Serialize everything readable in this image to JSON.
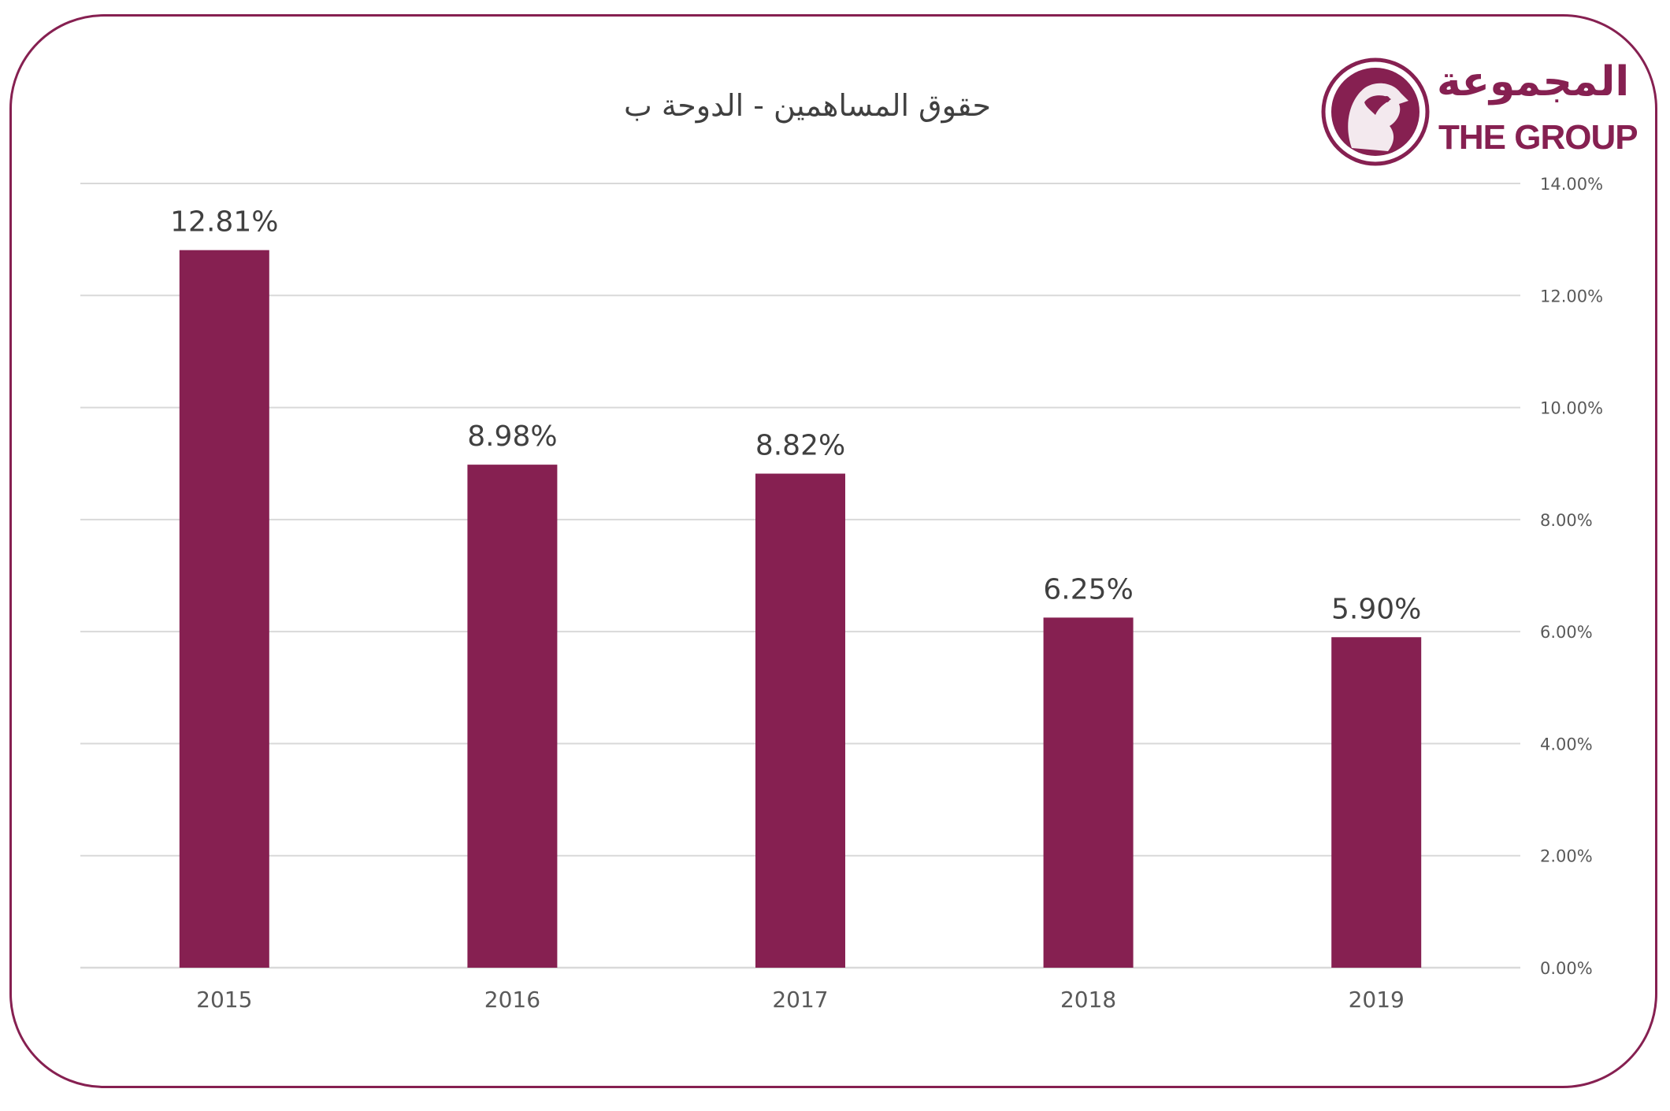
{
  "logo": {
    "text_ar": "المجموعة",
    "text_en": "THE GROUP",
    "icon": "falcon-emblem-icon"
  },
  "chart_data": {
    "type": "bar",
    "title": "حقوق المساهمين - الدوحة ب",
    "categories": [
      "2015",
      "2016",
      "2017",
      "2018",
      "2019"
    ],
    "values": [
      12.81,
      8.98,
      8.82,
      6.25,
      5.9
    ],
    "data_labels": [
      "12.81%",
      "8.98%",
      "8.82%",
      "6.25%",
      "5.90%"
    ],
    "y_ticks": [
      "0.00%",
      "2.00%",
      "4.00%",
      "6.00%",
      "8.00%",
      "10.00%",
      "12.00%",
      "14.00%"
    ],
    "ylim": [
      0,
      14
    ],
    "y_axis_side": "right",
    "grid": true,
    "xlabel": "",
    "ylabel": "",
    "colors": {
      "bar": "#862051",
      "grid": "#d9d9d9",
      "text": "#404040",
      "frame": "#862051"
    }
  }
}
